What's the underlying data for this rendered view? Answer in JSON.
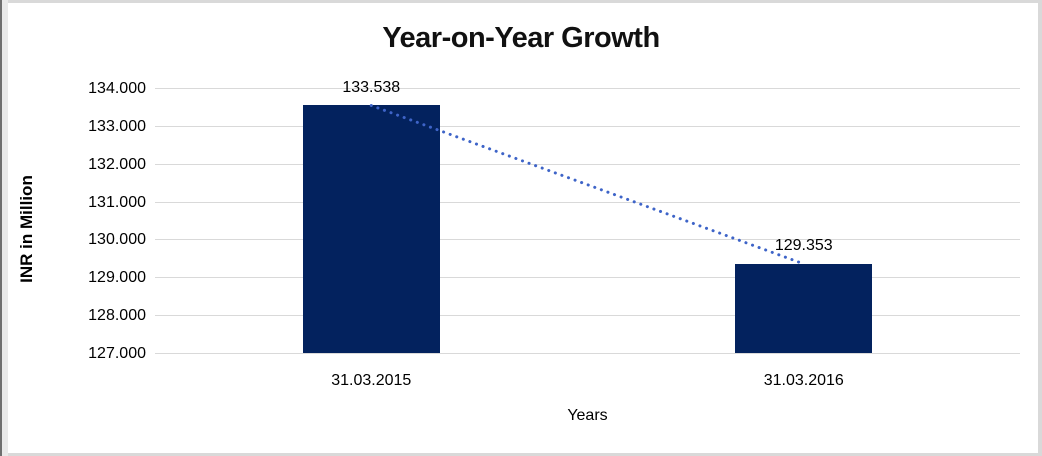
{
  "chart": {
    "title": "Year-on-Year Growth",
    "y_axis_title": "INR in Million",
    "x_axis_title": "Years"
  },
  "chart_data": {
    "type": "bar",
    "title": "Year-on-Year Growth",
    "xlabel": "Years",
    "ylabel": "INR in Million",
    "categories": [
      "31.03.2015",
      "31.03.2016"
    ],
    "values": [
      133.538,
      129.353
    ],
    "value_labels": [
      "133.538",
      "129.353"
    ],
    "ylim": [
      127,
      134
    ],
    "ytick_labels_top_to_bottom": [
      "134.000",
      "133.000",
      "132.000",
      "131.000",
      "130.000",
      "129.000",
      "128.000",
      "127.000"
    ],
    "grid": "horizontal",
    "legend": "none",
    "trendline": {
      "style": "dotted",
      "connects": "tops of bars (133.538 to 129.353)"
    },
    "colors": {
      "bar": "#03225e",
      "trendline": "#3e64c8",
      "gridline": "#d9d9d9",
      "text": "#000000"
    }
  }
}
